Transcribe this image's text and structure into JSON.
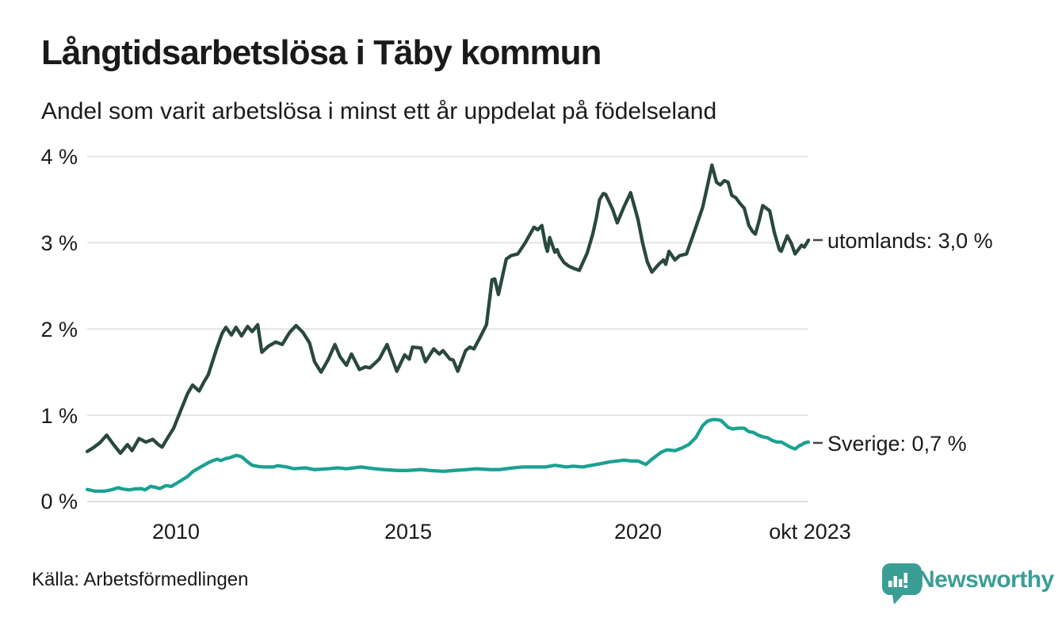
{
  "title": "Långtidsarbetslösa i Täby kommun",
  "subtitle": "Andel som varit arbetslösa i minst ett år uppdelat på födelseland",
  "source": "Källa: Arbetsförmedlingen",
  "brand": {
    "name": "Newsworthy",
    "color": "#3b9e96"
  },
  "chart_data": {
    "type": "line",
    "title": "Långtidsarbetslösa i Täby kommun",
    "subtitle": "Andel som varit arbetslösa i minst ett år uppdelat på födelseland",
    "grid": true,
    "legend_position": "right-edge-labels",
    "y_axis": {
      "unit": "%",
      "range": [
        0,
        4
      ],
      "ticks": [
        {
          "label": "0 %",
          "value": 0
        },
        {
          "label": "1 %",
          "value": 1
        },
        {
          "label": "2 %",
          "value": 2
        },
        {
          "label": "3 %",
          "value": 3
        },
        {
          "label": "4 %",
          "value": 4
        }
      ]
    },
    "x_axis": {
      "range_years": [
        2008.08,
        2023.75
      ],
      "ticks": [
        {
          "label": "2010",
          "year": 2010
        },
        {
          "label": "2015",
          "year": 2015
        },
        {
          "label": "2020",
          "year": 2020
        },
        {
          "label": "okt 2023",
          "year": 2023.73
        }
      ]
    },
    "series": [
      {
        "name": "utomlands",
        "end_label": "utomlands: 3,0 %",
        "last_value": "3,0 %",
        "color": "#29483f",
        "points": [
          [
            2008.08,
            0.58
          ],
          [
            2008.2,
            0.62
          ],
          [
            2008.35,
            0.68
          ],
          [
            2008.5,
            0.77
          ],
          [
            2008.65,
            0.66
          ],
          [
            2008.8,
            0.56
          ],
          [
            2008.95,
            0.66
          ],
          [
            2009.05,
            0.59
          ],
          [
            2009.2,
            0.73
          ],
          [
            2009.35,
            0.69
          ],
          [
            2009.5,
            0.72
          ],
          [
            2009.62,
            0.66
          ],
          [
            2009.7,
            0.63
          ],
          [
            2009.8,
            0.72
          ],
          [
            2009.95,
            0.85
          ],
          [
            2010.1,
            1.05
          ],
          [
            2010.25,
            1.25
          ],
          [
            2010.36,
            1.35
          ],
          [
            2010.5,
            1.28
          ],
          [
            2010.6,
            1.38
          ],
          [
            2010.7,
            1.47
          ],
          [
            2010.88,
            1.77
          ],
          [
            2011.0,
            1.95
          ],
          [
            2011.08,
            2.02
          ],
          [
            2011.2,
            1.93
          ],
          [
            2011.3,
            2.02
          ],
          [
            2011.42,
            1.92
          ],
          [
            2011.55,
            2.03
          ],
          [
            2011.65,
            1.97
          ],
          [
            2011.77,
            2.05
          ],
          [
            2011.86,
            1.73
          ],
          [
            2012.0,
            1.8
          ],
          [
            2012.16,
            1.85
          ],
          [
            2012.3,
            1.82
          ],
          [
            2012.46,
            1.96
          ],
          [
            2012.6,
            2.04
          ],
          [
            2012.75,
            1.96
          ],
          [
            2012.89,
            1.84
          ],
          [
            2013.0,
            1.62
          ],
          [
            2013.14,
            1.5
          ],
          [
            2013.3,
            1.65
          ],
          [
            2013.44,
            1.82
          ],
          [
            2013.55,
            1.68
          ],
          [
            2013.69,
            1.58
          ],
          [
            2013.8,
            1.71
          ],
          [
            2013.97,
            1.53
          ],
          [
            2014.1,
            1.56
          ],
          [
            2014.2,
            1.55
          ],
          [
            2014.4,
            1.65
          ],
          [
            2014.57,
            1.82
          ],
          [
            2014.78,
            1.51
          ],
          [
            2014.95,
            1.7
          ],
          [
            2015.05,
            1.65
          ],
          [
            2015.12,
            1.79
          ],
          [
            2015.3,
            1.78
          ],
          [
            2015.4,
            1.62
          ],
          [
            2015.58,
            1.77
          ],
          [
            2015.7,
            1.71
          ],
          [
            2015.78,
            1.75
          ],
          [
            2015.93,
            1.65
          ],
          [
            2016.0,
            1.64
          ],
          [
            2016.1,
            1.51
          ],
          [
            2016.27,
            1.75
          ],
          [
            2016.36,
            1.79
          ],
          [
            2016.45,
            1.77
          ],
          [
            2016.58,
            1.9
          ],
          [
            2016.72,
            2.05
          ],
          [
            2016.84,
            2.57
          ],
          [
            2016.9,
            2.58
          ],
          [
            2016.98,
            2.4
          ],
          [
            2017.15,
            2.81
          ],
          [
            2017.25,
            2.85
          ],
          [
            2017.4,
            2.87
          ],
          [
            2017.56,
            3.0
          ],
          [
            2017.75,
            3.18
          ],
          [
            2017.83,
            3.15
          ],
          [
            2017.92,
            3.2
          ],
          [
            2018.0,
            2.97
          ],
          [
            2018.04,
            2.9
          ],
          [
            2018.09,
            3.06
          ],
          [
            2018.2,
            2.89
          ],
          [
            2018.25,
            2.92
          ],
          [
            2018.3,
            2.85
          ],
          [
            2018.4,
            2.77
          ],
          [
            2018.5,
            2.73
          ],
          [
            2018.62,
            2.7
          ],
          [
            2018.73,
            2.68
          ],
          [
            2018.9,
            2.88
          ],
          [
            2019.02,
            3.1
          ],
          [
            2019.1,
            3.29
          ],
          [
            2019.17,
            3.5
          ],
          [
            2019.25,
            3.57
          ],
          [
            2019.3,
            3.56
          ],
          [
            2019.45,
            3.39
          ],
          [
            2019.55,
            3.23
          ],
          [
            2019.7,
            3.42
          ],
          [
            2019.84,
            3.58
          ],
          [
            2020.0,
            3.27
          ],
          [
            2020.1,
            3.0
          ],
          [
            2020.2,
            2.78
          ],
          [
            2020.3,
            2.66
          ],
          [
            2020.45,
            2.75
          ],
          [
            2020.55,
            2.8
          ],
          [
            2020.6,
            2.75
          ],
          [
            2020.67,
            2.9
          ],
          [
            2020.8,
            2.8
          ],
          [
            2020.9,
            2.85
          ],
          [
            2021.05,
            2.87
          ],
          [
            2021.2,
            3.1
          ],
          [
            2021.4,
            3.41
          ],
          [
            2021.5,
            3.65
          ],
          [
            2021.6,
            3.9
          ],
          [
            2021.7,
            3.7
          ],
          [
            2021.78,
            3.67
          ],
          [
            2021.87,
            3.72
          ],
          [
            2021.95,
            3.7
          ],
          [
            2022.03,
            3.55
          ],
          [
            2022.12,
            3.52
          ],
          [
            2022.2,
            3.46
          ],
          [
            2022.3,
            3.4
          ],
          [
            2022.4,
            3.2
          ],
          [
            2022.48,
            3.13
          ],
          [
            2022.54,
            3.1
          ],
          [
            2022.62,
            3.25
          ],
          [
            2022.7,
            3.43
          ],
          [
            2022.85,
            3.37
          ],
          [
            2022.95,
            3.12
          ],
          [
            2023.06,
            2.92
          ],
          [
            2023.1,
            2.9
          ],
          [
            2023.23,
            3.08
          ],
          [
            2023.32,
            2.99
          ],
          [
            2023.4,
            2.87
          ],
          [
            2023.54,
            2.97
          ],
          [
            2023.6,
            2.95
          ],
          [
            2023.69,
            3.03
          ]
        ]
      },
      {
        "name": "Sverige",
        "end_label": "Sverige: 0,7 %",
        "last_value": "0,7 %",
        "color": "#1aa192",
        "points": [
          [
            2008.08,
            0.14
          ],
          [
            2008.25,
            0.12
          ],
          [
            2008.45,
            0.12
          ],
          [
            2008.6,
            0.135
          ],
          [
            2008.75,
            0.16
          ],
          [
            2008.85,
            0.145
          ],
          [
            2009.0,
            0.135
          ],
          [
            2009.1,
            0.145
          ],
          [
            2009.25,
            0.15
          ],
          [
            2009.33,
            0.135
          ],
          [
            2009.45,
            0.175
          ],
          [
            2009.55,
            0.165
          ],
          [
            2009.65,
            0.15
          ],
          [
            2009.78,
            0.185
          ],
          [
            2009.9,
            0.175
          ],
          [
            2009.98,
            0.2
          ],
          [
            2010.1,
            0.24
          ],
          [
            2010.25,
            0.29
          ],
          [
            2010.36,
            0.345
          ],
          [
            2010.5,
            0.39
          ],
          [
            2010.6,
            0.42
          ],
          [
            2010.7,
            0.45
          ],
          [
            2010.8,
            0.475
          ],
          [
            2010.9,
            0.49
          ],
          [
            2010.97,
            0.475
          ],
          [
            2011.08,
            0.5
          ],
          [
            2011.15,
            0.505
          ],
          [
            2011.31,
            0.535
          ],
          [
            2011.42,
            0.52
          ],
          [
            2011.55,
            0.46
          ],
          [
            2011.65,
            0.42
          ],
          [
            2011.8,
            0.405
          ],
          [
            2011.9,
            0.4
          ],
          [
            2012.1,
            0.4
          ],
          [
            2012.2,
            0.415
          ],
          [
            2012.4,
            0.4
          ],
          [
            2012.55,
            0.38
          ],
          [
            2012.8,
            0.39
          ],
          [
            2013.0,
            0.37
          ],
          [
            2013.3,
            0.38
          ],
          [
            2013.5,
            0.39
          ],
          [
            2013.7,
            0.38
          ],
          [
            2014.0,
            0.4
          ],
          [
            2014.3,
            0.38
          ],
          [
            2014.5,
            0.37
          ],
          [
            2014.8,
            0.36
          ],
          [
            2015.0,
            0.36
          ],
          [
            2015.3,
            0.37
          ],
          [
            2015.5,
            0.36
          ],
          [
            2015.8,
            0.35
          ],
          [
            2016.0,
            0.36
          ],
          [
            2016.3,
            0.37
          ],
          [
            2016.5,
            0.38
          ],
          [
            2016.8,
            0.37
          ],
          [
            2017.0,
            0.37
          ],
          [
            2017.3,
            0.39
          ],
          [
            2017.5,
            0.4
          ],
          [
            2017.8,
            0.4
          ],
          [
            2018.0,
            0.4
          ],
          [
            2018.2,
            0.42
          ],
          [
            2018.45,
            0.4
          ],
          [
            2018.6,
            0.41
          ],
          [
            2018.8,
            0.4
          ],
          [
            2019.0,
            0.42
          ],
          [
            2019.2,
            0.44
          ],
          [
            2019.4,
            0.46
          ],
          [
            2019.57,
            0.47
          ],
          [
            2019.7,
            0.48
          ],
          [
            2019.85,
            0.47
          ],
          [
            2020.0,
            0.47
          ],
          [
            2020.17,
            0.43
          ],
          [
            2020.3,
            0.49
          ],
          [
            2020.5,
            0.57
          ],
          [
            2020.63,
            0.6
          ],
          [
            2020.8,
            0.59
          ],
          [
            2020.95,
            0.62
          ],
          [
            2021.1,
            0.66
          ],
          [
            2021.25,
            0.74
          ],
          [
            2021.4,
            0.88
          ],
          [
            2021.5,
            0.93
          ],
          [
            2021.6,
            0.95
          ],
          [
            2021.7,
            0.95
          ],
          [
            2021.8,
            0.94
          ],
          [
            2021.95,
            0.86
          ],
          [
            2022.05,
            0.84
          ],
          [
            2022.15,
            0.85
          ],
          [
            2022.3,
            0.85
          ],
          [
            2022.4,
            0.81
          ],
          [
            2022.5,
            0.8
          ],
          [
            2022.6,
            0.77
          ],
          [
            2022.7,
            0.75
          ],
          [
            2022.8,
            0.74
          ],
          [
            2022.9,
            0.71
          ],
          [
            2023.0,
            0.69
          ],
          [
            2023.1,
            0.69
          ],
          [
            2023.2,
            0.66
          ],
          [
            2023.3,
            0.63
          ],
          [
            2023.4,
            0.61
          ],
          [
            2023.5,
            0.65
          ],
          [
            2023.55,
            0.66
          ],
          [
            2023.6,
            0.68
          ],
          [
            2023.69,
            0.69
          ]
        ]
      }
    ]
  }
}
